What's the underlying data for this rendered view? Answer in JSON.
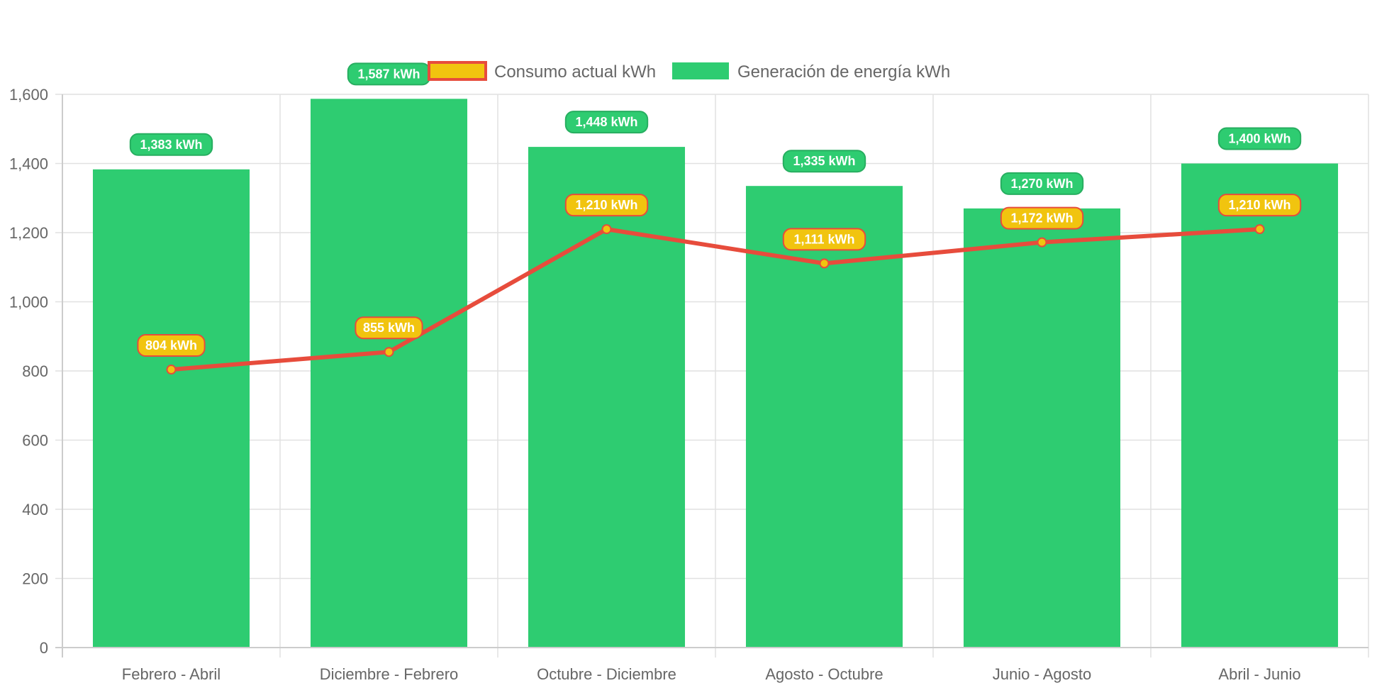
{
  "chart_data": {
    "type": "bar",
    "categories": [
      "Febrero - Abril",
      "Diciembre - Febrero",
      "Octubre - Diciembre",
      "Agosto - Octubre",
      "Junio - Agosto",
      "Abril - Junio"
    ],
    "series": [
      {
        "name": "Consumo actual kWh",
        "type": "line",
        "values": [
          804,
          855,
          1210,
          1111,
          1172,
          1210
        ],
        "labels": [
          "804 kWh",
          "855 kWh",
          "1,210 kWh",
          "1,111 kWh",
          "1,172 kWh",
          "1,210 kWh"
        ],
        "color": "#e74c3c",
        "fill": "#f1c40f"
      },
      {
        "name": "Generación de energía kWh",
        "type": "bar",
        "values": [
          1383,
          1587,
          1448,
          1335,
          1270,
          1400
        ],
        "labels": [
          "1,383 kWh",
          "1,587 kWh",
          "1,448 kWh",
          "1,335 kWh",
          "1,270 kWh",
          "1,400 kWh"
        ],
        "color": "#2ecc71"
      }
    ],
    "ylim": [
      0,
      1600
    ],
    "yticks": [
      "0",
      "200",
      "400",
      "600",
      "800",
      "1,000",
      "1,200",
      "1,400",
      "1,600"
    ],
    "grid": true,
    "legend_position": "top-center",
    "title": "",
    "xlabel": "",
    "ylabel": ""
  }
}
